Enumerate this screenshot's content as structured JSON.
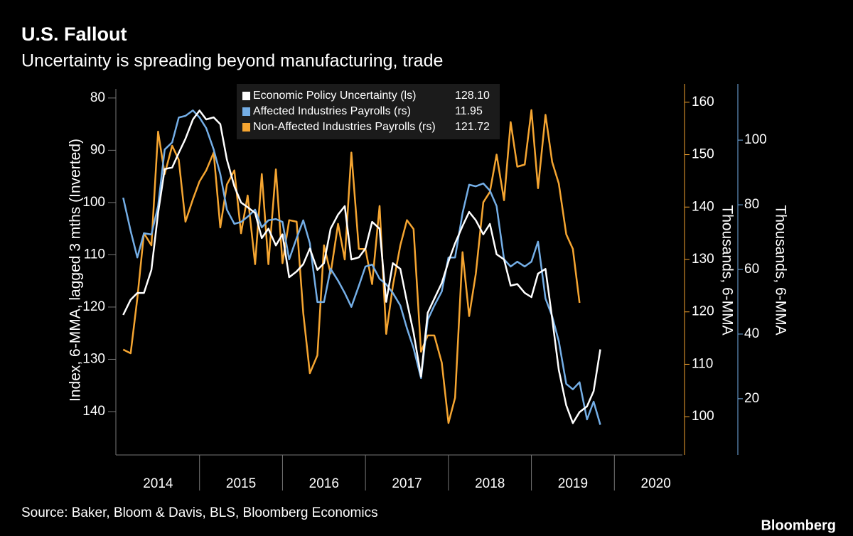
{
  "chart_data": {
    "type": "line",
    "title": "U.S. Fallout",
    "subtitle": "Uncertainty is spreading beyond manufacturing, trade",
    "source": "Source: Baker, Bloom & Davis, BLS, Bloomberg Economics",
    "brand": "Bloomberg",
    "ylabel": "Index, 6-MMA, lagged 3 mths (Inverted)",
    "y2label": "Thousands, 6-MMA",
    "y3label": "Thousands, 6-MMA",
    "x": [
      2014.08,
      2014.17,
      2014.25,
      2014.33,
      2014.42,
      2014.5,
      2014.58,
      2014.67,
      2014.75,
      2014.83,
      2014.92,
      2015.0,
      2015.08,
      2015.17,
      2015.25,
      2015.33,
      2015.42,
      2015.5,
      2015.58,
      2015.67,
      2015.75,
      2015.83,
      2015.92,
      2016.0,
      2016.08,
      2016.17,
      2016.25,
      2016.33,
      2016.42,
      2016.5,
      2016.58,
      2016.67,
      2016.75,
      2016.83,
      2016.92,
      2017.0,
      2017.08,
      2017.17,
      2017.25,
      2017.33,
      2017.42,
      2017.5,
      2017.58,
      2017.67,
      2017.75,
      2017.83,
      2017.92,
      2018.0,
      2018.08,
      2018.17,
      2018.25,
      2018.33,
      2018.42,
      2018.5,
      2018.58,
      2018.67,
      2018.75,
      2018.83,
      2018.92,
      2019.0,
      2019.08,
      2019.17,
      2019.25,
      2019.33,
      2019.42,
      2019.5,
      2019.58,
      2019.67,
      2019.75,
      2019.83
    ],
    "xlim": [
      2014,
      2020.82
    ],
    "xticks": [
      2014,
      2015,
      2016,
      2017,
      2018,
      2019,
      2020
    ],
    "ylim": [
      77.3,
      148.3
    ],
    "y_inverted": true,
    "yticks": [
      80,
      90,
      100,
      110,
      120,
      130,
      140
    ],
    "y2lim": [
      92.7,
      163.5
    ],
    "y2ticks": [
      100,
      110,
      120,
      130,
      140,
      150,
      160
    ],
    "y3lim": [
      2.6,
      117.4
    ],
    "y3ticks": [
      20,
      40,
      60,
      80,
      100
    ],
    "series": [
      {
        "name": "Economic Policy Uncertainty (ls)",
        "color": "#ffffff",
        "axis": "y",
        "legend_value": "128.10",
        "values": [
          121.5,
          118.6,
          117.3,
          117.3,
          112.9,
          102.0,
          93.6,
          93.3,
          90.5,
          87.8,
          84.1,
          82.4,
          84.1,
          83.7,
          85.0,
          91.8,
          96.9,
          100.0,
          100.9,
          102.0,
          106.8,
          105.0,
          108.2,
          106.1,
          114.3,
          113.2,
          111.8,
          108.8,
          112.9,
          111.6,
          105.0,
          102.3,
          100.7,
          110.9,
          110.5,
          108.8,
          103.7,
          105.0,
          119.0,
          111.6,
          112.7,
          119.0,
          124.9,
          133.3,
          121.1,
          118.4,
          115.4,
          111.3,
          107.8,
          104.5,
          101.8,
          103.4,
          106.1,
          104.1,
          109.9,
          110.9,
          115.9,
          115.6,
          117.3,
          118.1,
          113.6,
          112.7,
          122.2,
          132.0,
          138.8,
          142.2,
          140.1,
          139.0,
          136.1,
          128.1
        ]
      },
      {
        "name": "Affected Industries Payrolls (rs)",
        "color": "#74aee6",
        "axis": "y3",
        "legend_value": "11.95",
        "values": [
          82.2,
          71.9,
          63.7,
          71.2,
          70.8,
          79.6,
          97.1,
          99.3,
          107.0,
          107.5,
          109.2,
          107.0,
          103.7,
          97.1,
          89.5,
          78.5,
          74.1,
          74.7,
          76.3,
          78.5,
          73.0,
          75.2,
          75.6,
          74.7,
          63.1,
          69.7,
          75.2,
          68.1,
          49.9,
          49.9,
          60.2,
          56.5,
          52.7,
          48.4,
          54.9,
          60.9,
          61.5,
          57.1,
          55.4,
          52.7,
          48.8,
          41.8,
          35.6,
          26.4,
          44.4,
          48.8,
          53.2,
          63.7,
          63.7,
          77.4,
          86.2,
          85.7,
          86.6,
          84.4,
          79.6,
          63.1,
          60.9,
          62.4,
          60.9,
          62.4,
          68.6,
          51.0,
          45.5,
          37.8,
          24.6,
          22.9,
          25.1,
          13.6,
          19.1,
          11.95
        ]
      },
      {
        "name": "Non-Affected Industries Payrolls (rs)",
        "color": "#f5a531",
        "axis": "y2",
        "legend_value": "121.72",
        "values": [
          112.8,
          112.1,
          122.6,
          135.0,
          132.7,
          154.4,
          146.3,
          151.7,
          149.0,
          137.2,
          141.5,
          144.9,
          147.0,
          150.4,
          136.1,
          144.3,
          147.0,
          135.0,
          142.2,
          129.1,
          146.3,
          129.1,
          147.2,
          129.3,
          137.5,
          137.2,
          119.8,
          108.3,
          111.7,
          132.7,
          127.3,
          136.8,
          130.0,
          150.4,
          132.0,
          132.0,
          125.3,
          140.2,
          115.8,
          125.0,
          132.7,
          137.5,
          135.8,
          112.4,
          115.5,
          115.5,
          110.3,
          98.8,
          103.6,
          131.4,
          119.2,
          127.3,
          140.9,
          142.9,
          150.0,
          141.3,
          156.2,
          147.7,
          148.1,
          158.5,
          143.6,
          157.6,
          148.6,
          144.5,
          134.8,
          132.0,
          121.72,
          null,
          null,
          null
        ]
      }
    ]
  }
}
